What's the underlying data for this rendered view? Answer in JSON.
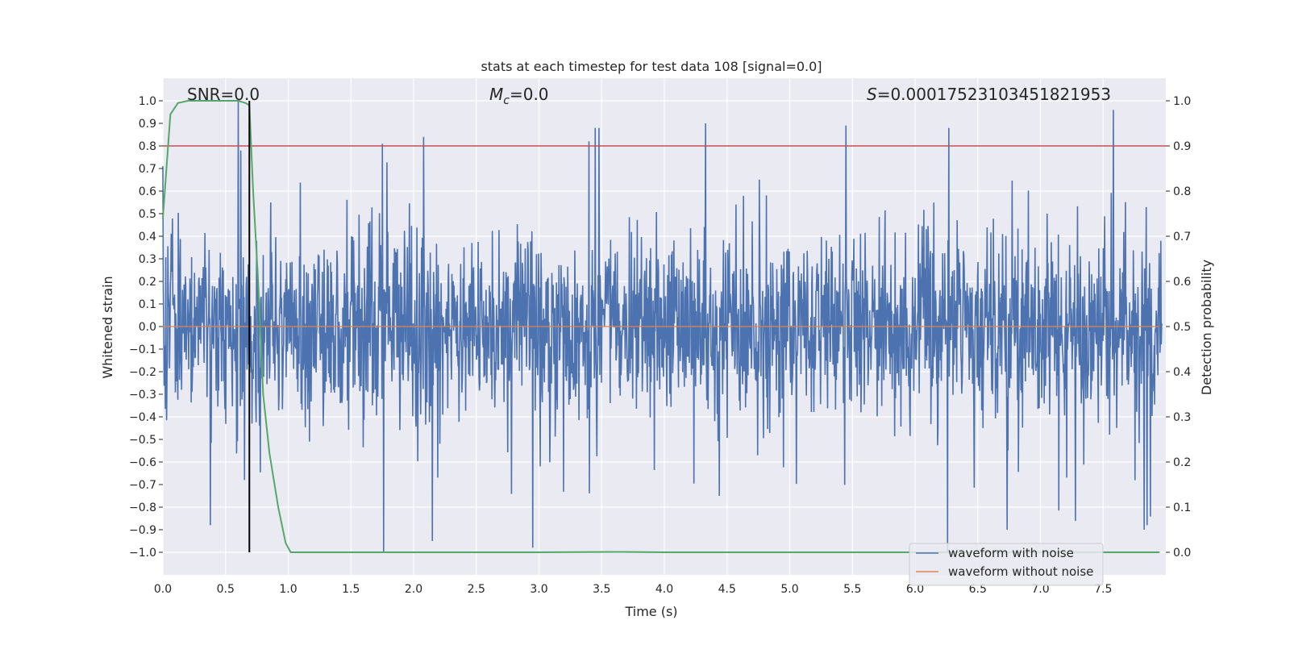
{
  "chart_data": {
    "type": "line",
    "title": "stats at each timestep for test data 108 [signal=0.0]",
    "xlabel": "Time (s)",
    "ylabel_left": "Whitened strain",
    "ylabel_right": "Detection probability",
    "xlim": [
      0.0,
      8.0
    ],
    "ylim_left": [
      -1.1,
      1.1
    ],
    "ylim_right": [
      -0.05,
      1.05
    ],
    "x_ticks": [
      "0.0",
      "0.5",
      "1.0",
      "1.5",
      "2.0",
      "2.5",
      "3.0",
      "3.5",
      "4.0",
      "4.5",
      "5.0",
      "5.5",
      "6.0",
      "6.5",
      "7.0",
      "7.5"
    ],
    "y_left_ticks": [
      "1.0",
      "0.9",
      "0.8",
      "0.7",
      "0.6",
      "0.5",
      "0.4",
      "0.3",
      "0.2",
      "0.1",
      "0.0",
      "−0.1",
      "−0.2",
      "−0.3",
      "−0.4",
      "−0.5",
      "−0.6",
      "−0.7",
      "−0.8",
      "−0.9",
      "−1.0"
    ],
    "y_right_ticks": [
      "1.0",
      "0.9",
      "0.8",
      "0.7",
      "0.6",
      "0.5",
      "0.4",
      "0.3",
      "0.2",
      "0.1",
      "0.0"
    ],
    "grid": true,
    "annotations": {
      "snr": "SNR=0.0",
      "mc_symbol": "M",
      "mc_sub": "c",
      "mc_value": "=0.0",
      "s_symbol": "S",
      "s_value": "=0.00017523103451821953"
    },
    "legend": {
      "location": "lower-right",
      "entries": [
        "waveform with noise",
        "waveform without noise"
      ]
    },
    "series": [
      {
        "name": "waveform with noise",
        "color": "#4c72b0",
        "axis": "left",
        "description": "whitened noise, dense band mostly within ±0.4 with spikes up to about ±1.0",
        "envelope_typical": 0.45,
        "spikes": [
          {
            "t": 0.38,
            "v": -0.88
          },
          {
            "t": 0.6,
            "v": 1.0
          },
          {
            "t": 0.62,
            "v": 0.78
          },
          {
            "t": 0.65,
            "v": -0.68
          },
          {
            "t": 1.76,
            "v": -1.0
          },
          {
            "t": 1.75,
            "v": 0.81
          },
          {
            "t": 2.08,
            "v": 0.84
          },
          {
            "t": 2.15,
            "v": -0.95
          },
          {
            "t": 2.95,
            "v": -0.98
          },
          {
            "t": 3.45,
            "v": 0.88
          },
          {
            "t": 3.48,
            "v": 0.88
          },
          {
            "t": 3.4,
            "v": 0.82
          },
          {
            "t": 4.33,
            "v": 0.9
          },
          {
            "t": 5.45,
            "v": 0.89
          },
          {
            "t": 6.27,
            "v": 0.88
          },
          {
            "t": 6.26,
            "v": -1.0
          },
          {
            "t": 7.58,
            "v": 0.96
          },
          {
            "t": 7.85,
            "v": -0.88
          }
        ]
      },
      {
        "name": "waveform without noise",
        "color": "#dd8452",
        "axis": "left",
        "x": [
          0.0,
          7.95
        ],
        "y": [
          0.0,
          0.0
        ]
      },
      {
        "name": "detection probability",
        "color": "#55a868",
        "axis": "right",
        "x": [
          0.0,
          0.06,
          0.12,
          0.2,
          0.3,
          0.4,
          0.5,
          0.6,
          0.66,
          0.69,
          0.72,
          0.76,
          0.8,
          0.85,
          0.92,
          0.98,
          1.02,
          1.5,
          2.0,
          3.0,
          3.66,
          4.0,
          5.0,
          6.0,
          7.0,
          7.95
        ],
        "y": [
          0.74,
          0.97,
          0.995,
          1.0,
          1.0,
          1.0,
          1.0,
          1.0,
          0.995,
          0.99,
          0.8,
          0.6,
          0.35,
          0.22,
          0.1,
          0.02,
          0.0,
          0.0,
          0.0,
          0.0,
          0.001,
          0.0,
          0.0,
          0.0,
          0.0,
          0.0
        ]
      },
      {
        "name": "threshold",
        "color": "#c44e52",
        "axis": "right",
        "x": [
          0.0,
          8.0
        ],
        "y": [
          0.9,
          0.9
        ]
      },
      {
        "name": "detection time marker",
        "color": "#000000",
        "axis": "left",
        "x": [
          0.69,
          0.69
        ],
        "y": [
          -1.0,
          1.0
        ]
      }
    ]
  }
}
